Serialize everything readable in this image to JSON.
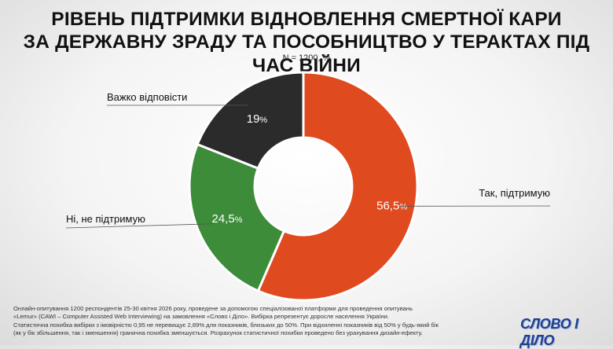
{
  "header": {
    "title_line1": "РІВЕНЬ ПІДТРИМКИ ВІДНОВЛЕННЯ СМЕРТНОЇ КАРИ",
    "title_line2": "ЗА ДЕРЖАВНУ ЗРАДУ ТА ПОСОБНИЦТВО У ТЕРАКТАХ ПІД ЧАС ВІЙНИ",
    "sample_note": "N = 1200, %"
  },
  "chart_data": {
    "type": "pie",
    "donut": true,
    "unit": "%",
    "slices": [
      {
        "label": "Так, підтримую",
        "value": 56.5,
        "value_label": "56,5",
        "color": "#e04a1f"
      },
      {
        "label": "Ні, не підтримую",
        "value": 24.5,
        "value_label": "24,5",
        "color": "#3c8c3a"
      },
      {
        "label": "Важко відповісти",
        "value": 19,
        "value_label": "19",
        "color": "#2b2b2b"
      }
    ]
  },
  "footnote": {
    "line1": "Онлайн-опитування 1200 респондентів 25-30 квітня 2026 року, проведене за допомогою спеціалізованої платформи для проведення опитувань",
    "line2": "«Lemur» (CAWI – Computer Assisted Web Interviewing) на замовлення «Слово і Діло». Вибірка репрезентує доросле населення України.",
    "line3": "Статистична похибка вибірки з імовірністю 0,95 не перевищує 2,89% для показників, близьких до 50%. При відхиленні показників від 50% у будь-який бік",
    "line4": "(як у бік збільшення, так і зменшення) гранична похибка зменшується. Розрахунок статистичної похибки проведено без урахування дизайн-ефекту."
  },
  "brand": {
    "logo_text": "СЛОВО І ДІЛО"
  }
}
